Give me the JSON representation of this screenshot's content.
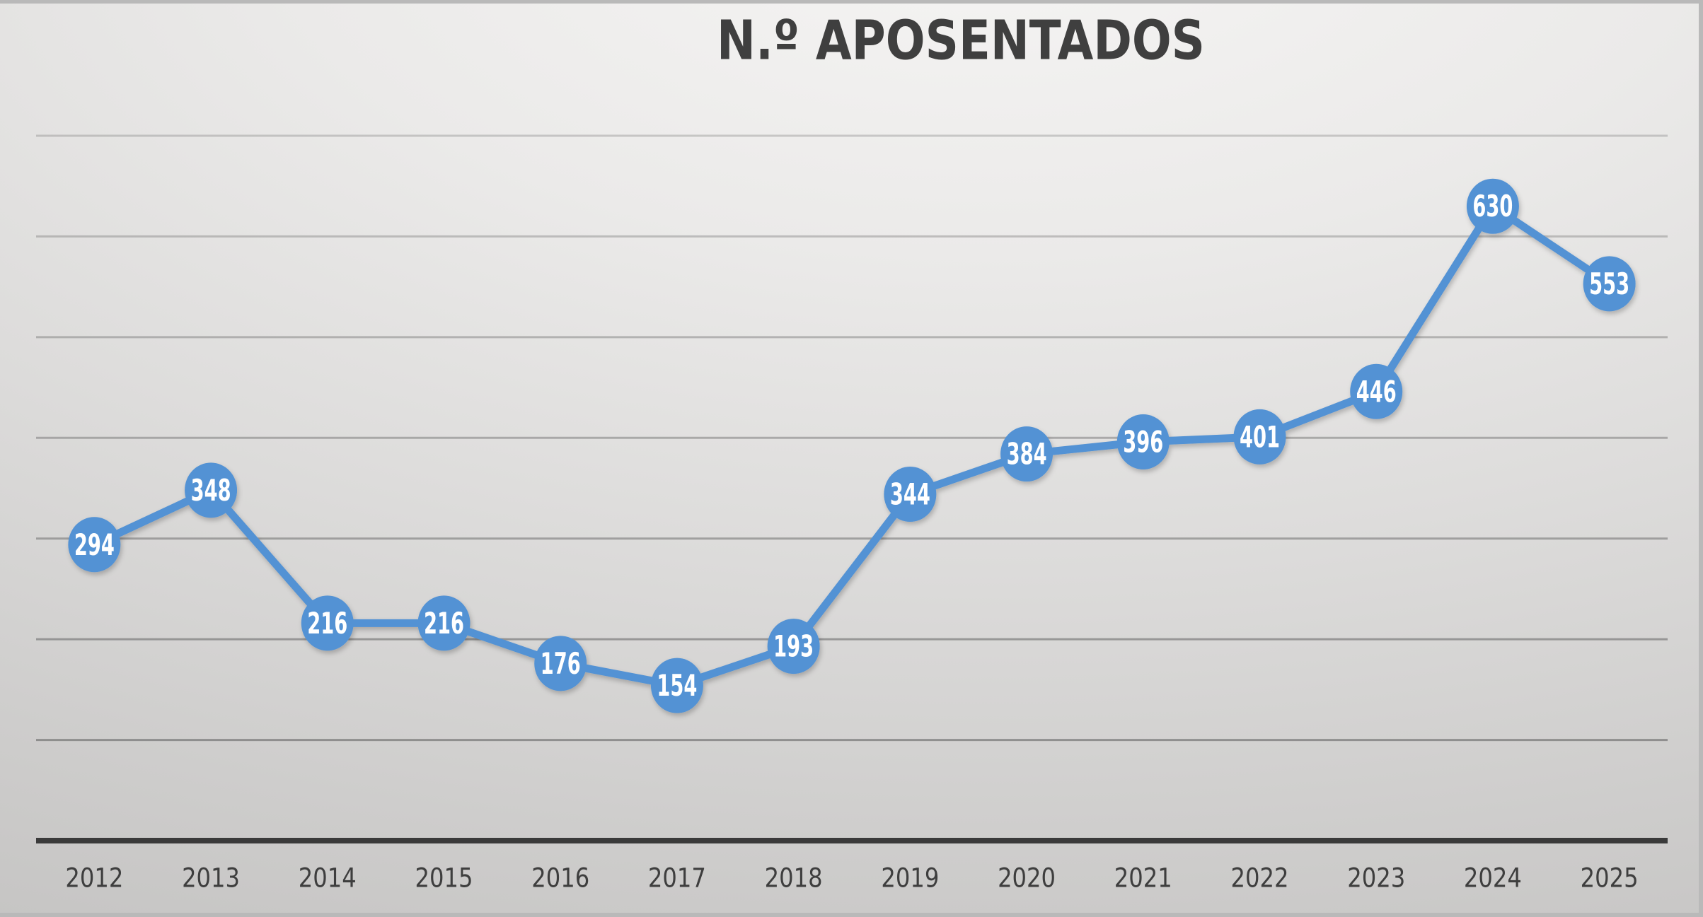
{
  "chart_data": {
    "type": "line",
    "title": "N.º APOSENTADOS",
    "categories": [
      "2012",
      "2013",
      "2014",
      "2015",
      "2016",
      "2017",
      "2018",
      "2019",
      "2020",
      "2021",
      "2022",
      "2023",
      "2024",
      "2025"
    ],
    "values": [
      294,
      348,
      216,
      216,
      176,
      154,
      193,
      344,
      384,
      396,
      401,
      446,
      630,
      553
    ],
    "xlabel": "",
    "ylabel": "",
    "ylim": [
      0,
      700
    ],
    "gridline_step": 100,
    "grid": "horizontal",
    "legend": "none",
    "data_labels": "inside-point-markers",
    "y_tick_labels": "none"
  },
  "colors": {
    "series": "#5392D4",
    "data_label_text": "#FFFFFF",
    "title_text": "#3F3F3F",
    "tick_text": "#3E3E3E",
    "axis_line": "#3A3A3A",
    "gridline": "#6E6E6E",
    "screen_edge": "#B9B9B9"
  }
}
